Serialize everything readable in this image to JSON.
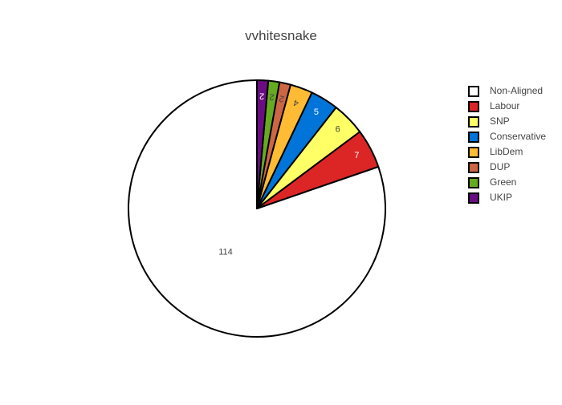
{
  "chart_data": {
    "type": "pie",
    "title": "vvhitesnake",
    "slices": [
      {
        "label": "Non-Aligned",
        "value": 114,
        "color": "#ffffff",
        "text_color": "#444444"
      },
      {
        "label": "Labour",
        "value": 7,
        "color": "#dc2626",
        "text_color": "#ffffff"
      },
      {
        "label": "SNP",
        "value": 6,
        "color": "#ffff66",
        "text_color": "#444444"
      },
      {
        "label": "Conservative",
        "value": 5,
        "color": "#0074d9",
        "text_color": "#ffffff"
      },
      {
        "label": "LibDem",
        "value": 4,
        "color": "#ffbb33",
        "text_color": "#444444"
      },
      {
        "label": "DUP",
        "value": 2,
        "color": "#cc6644",
        "text_color": "#444444"
      },
      {
        "label": "Green",
        "value": 2,
        "color": "#66aa22",
        "text_color": "#444444"
      },
      {
        "label": "UKIP",
        "value": 2,
        "color": "#6a0d83",
        "text_color": "#ffffff"
      }
    ],
    "legend": {
      "position": "right",
      "items": [
        "Non-Aligned",
        "Labour",
        "SNP",
        "Conservative",
        "LibDem",
        "DUP",
        "Green",
        "UKIP"
      ]
    },
    "start_angle": "top",
    "direction": "counterclockwise",
    "outline_color": "#000000"
  }
}
